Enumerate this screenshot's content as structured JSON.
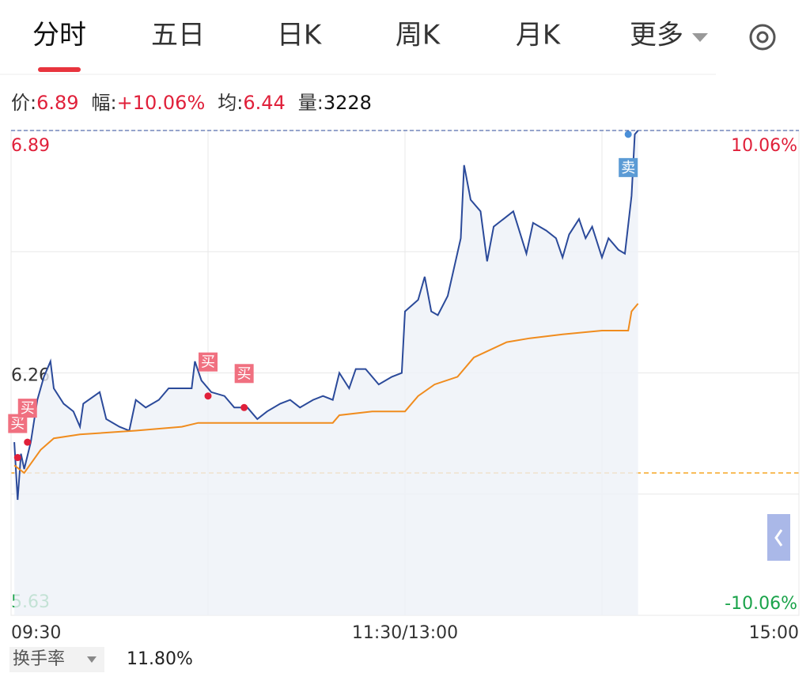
{
  "tabs": [
    "分时",
    "五日",
    "日K",
    "周K",
    "月K",
    "更多"
  ],
  "quote": [
    {
      "label": "价:",
      "value": "6.89"
    },
    {
      "label": "幅:",
      "value": "+10.06%"
    },
    {
      "label": "均:",
      "value": "6.44"
    },
    {
      "label": "量:",
      "value": "3228"
    }
  ],
  "footer": {
    "label": "换手率",
    "value": "11.80%"
  },
  "chart_data": {
    "type": "line",
    "series": [
      {
        "color": "#2b4a9a",
        "x": [
          1,
          2,
          3,
          4,
          6,
          8,
          10,
          12,
          13,
          16,
          19,
          21,
          22,
          27,
          29,
          33,
          36,
          38,
          41,
          45,
          48,
          52,
          55,
          56,
          58,
          61,
          65,
          68,
          72,
          75,
          78,
          82,
          85,
          88,
          92,
          95,
          98,
          100,
          103,
          105,
          108,
          112,
          116,
          119,
          120,
          124,
          126,
          128,
          130,
          133,
          137,
          138,
          140,
          143,
          145,
          147,
          150,
          153,
          157,
          159,
          163,
          166,
          168,
          170,
          173,
          175,
          177,
          180,
          182,
          185,
          187,
          189,
          190,
          191
        ],
        "values": [
          6.08,
          5.93,
          6.05,
          6.01,
          6.08,
          6.19,
          6.25,
          6.29,
          6.22,
          6.18,
          6.16,
          6.12,
          6.18,
          6.21,
          6.14,
          6.12,
          6.11,
          6.19,
          6.17,
          6.19,
          6.22,
          6.22,
          6.22,
          6.29,
          6.24,
          6.21,
          6.2,
          6.17,
          6.17,
          6.14,
          6.16,
          6.18,
          6.19,
          6.17,
          6.19,
          6.2,
          6.19,
          6.26,
          6.22,
          6.27,
          6.27,
          6.23,
          6.25,
          6.26,
          6.42,
          6.45,
          6.51,
          6.42,
          6.41,
          6.46,
          6.61,
          6.8,
          6.71,
          6.68,
          6.55,
          6.64,
          6.66,
          6.68,
          6.57,
          6.65,
          6.63,
          6.61,
          6.56,
          6.62,
          6.66,
          6.61,
          6.64,
          6.56,
          6.61,
          6.58,
          6.57,
          6.72,
          6.88,
          6.89
        ]
      },
      {
        "color": "#f08c1e",
        "x": [
          1,
          4,
          9,
          13,
          21,
          38,
          52,
          57,
          98,
          100,
          110,
          120,
          124,
          129,
          136,
          141,
          151,
          158,
          168,
          180,
          188,
          189,
          191
        ],
        "values": [
          6.02,
          6.0,
          6.06,
          6.09,
          6.1,
          6.11,
          6.12,
          6.13,
          6.13,
          6.15,
          6.16,
          6.16,
          6.2,
          6.23,
          6.25,
          6.3,
          6.34,
          6.35,
          6.36,
          6.37,
          6.37,
          6.42,
          6.44
        ]
      }
    ],
    "annotations": [
      {
        "text": "买",
        "x": 2,
        "y": 6.04
      },
      {
        "text": "买",
        "x": 5,
        "y": 6.08
      },
      {
        "text": "买",
        "x": 60,
        "y": 6.2
      },
      {
        "text": "买",
        "x": 71,
        "y": 6.17
      },
      {
        "text": "卖",
        "x": 188,
        "y": 6.88
      }
    ],
    "xlim": [
      0,
      240
    ],
    "xticks": [
      {
        "value": 0,
        "label": "09:30"
      },
      {
        "value": 120,
        "label": "11:30/13:00"
      },
      {
        "value": 240,
        "label": "15:00"
      }
    ],
    "ylim": [
      5.63,
      6.89
    ],
    "yticks": [
      5.63,
      6.26,
      6.89
    ],
    "y2lim": [
      -10.06,
      10.06
    ],
    "y2ticks": [
      {
        "value": -10.06,
        "label": "-10.06%"
      },
      {
        "value": 10.06,
        "label": "10.06%"
      }
    ],
    "grid": true
  }
}
